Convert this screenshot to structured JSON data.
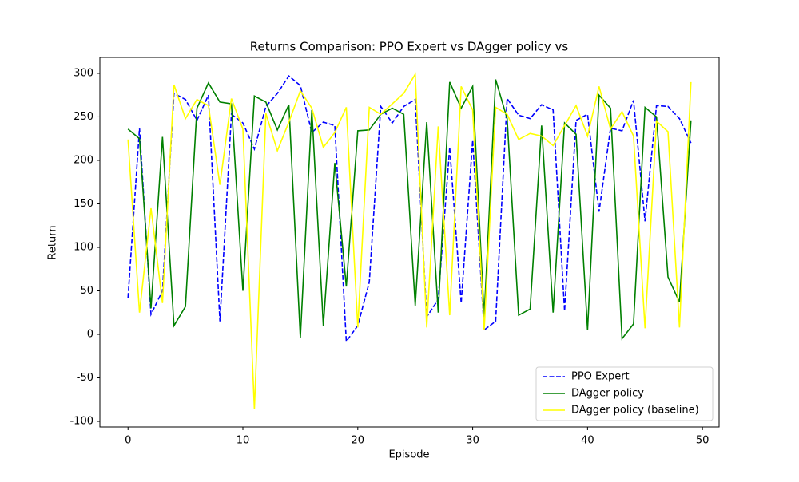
{
  "chart_data": {
    "type": "line",
    "title": "Returns Comparison: PPO Expert vs DAgger policy vs",
    "x_label": "Episode",
    "y_label": "Return",
    "x": [
      0,
      1,
      2,
      3,
      4,
      5,
      6,
      7,
      8,
      9,
      10,
      11,
      12,
      13,
      14,
      15,
      16,
      17,
      18,
      19,
      20,
      21,
      22,
      23,
      24,
      25,
      26,
      27,
      28,
      29,
      30,
      31,
      32,
      33,
      34,
      35,
      36,
      37,
      38,
      39,
      40,
      41,
      42,
      43,
      44,
      45,
      46,
      47,
      48,
      49
    ],
    "series": [
      {
        "name": "PPO Expert",
        "color": "#0000ff",
        "linestyle": "dashed",
        "values": [
          42,
          237,
          23,
          50,
          277,
          270,
          246,
          275,
          15,
          253,
          243,
          213,
          262,
          277,
          297,
          286,
          232,
          244,
          240,
          -8,
          10,
          60,
          262,
          243,
          262,
          270,
          20,
          40,
          215,
          36,
          223,
          5,
          15,
          271,
          252,
          248,
          264,
          258,
          27,
          246,
          253,
          141,
          237,
          234,
          269,
          130,
          263,
          262,
          248,
          220
        ]
      },
      {
        "name": "DAgger policy",
        "color": "#008000",
        "linestyle": "solid",
        "values": [
          236,
          225,
          30,
          227,
          10,
          32,
          260,
          289,
          267,
          265,
          50,
          274,
          267,
          235,
          264,
          -4,
          258,
          10,
          197,
          55,
          234,
          235,
          253,
          260,
          253,
          33,
          244,
          25,
          290,
          260,
          285,
          20,
          293,
          248,
          22,
          29,
          240,
          25,
          243,
          230,
          5,
          275,
          260,
          -5,
          12,
          261,
          250,
          66,
          37,
          246
        ]
      },
      {
        "name": "DAgger policy (baseline)",
        "color": "#ffff00",
        "linestyle": "solid",
        "values": [
          224,
          25,
          145,
          36,
          287,
          248,
          270,
          263,
          172,
          271,
          236,
          -86,
          254,
          211,
          244,
          280,
          260,
          215,
          232,
          261,
          8,
          261,
          253,
          265,
          277,
          299,
          8,
          239,
          22,
          285,
          258,
          5,
          261,
          253,
          224,
          231,
          228,
          217,
          240,
          263,
          228,
          285,
          236,
          256,
          228,
          7,
          245,
          233,
          8,
          290
        ]
      }
    ],
    "xlim": [
      -2.45,
      51.45
    ],
    "ylim": [
      -106.4,
      318.3
    ],
    "xticks": [
      0,
      10,
      20,
      30,
      40,
      50
    ],
    "yticks": [
      -100,
      -50,
      0,
      50,
      100,
      150,
      200,
      250,
      300
    ],
    "legend": "lower right"
  }
}
